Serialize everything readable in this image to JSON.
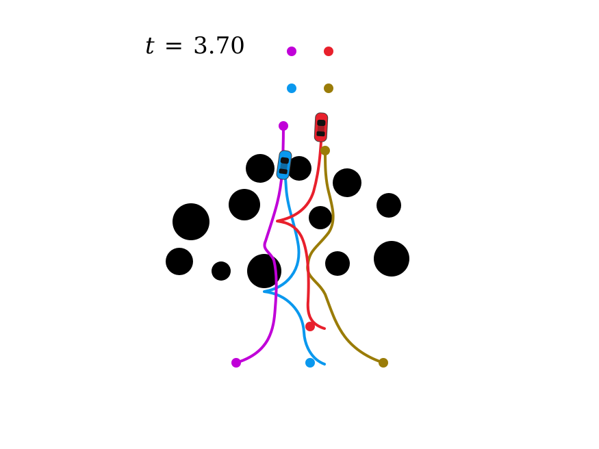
{
  "time": {
    "variable": "t",
    "equals": "=",
    "value": "3.70"
  },
  "agents": [
    {
      "color": "#c000d8",
      "role": "agent-1"
    },
    {
      "color": "#e8202c",
      "role": "agent-2"
    },
    {
      "color": "#0a98ee",
      "role": "agent-3"
    },
    {
      "color": "#9a7c08",
      "role": "agent-4"
    }
  ],
  "obstacle_color": "#000000",
  "car_icon": "car-icon"
}
